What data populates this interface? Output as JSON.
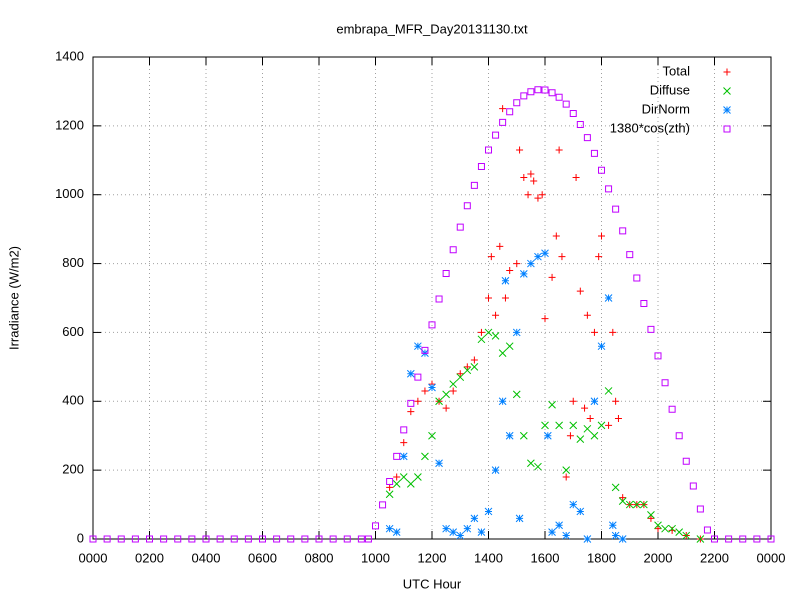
{
  "chart_data": {
    "type": "scatter",
    "title": "embrapa_MFR_Day20131130.txt",
    "x_label": "UTC Hour",
    "y_label": "Irradiance (W/m2)",
    "xlim": [
      0,
      24
    ],
    "xticks": [
      {
        "value": 0,
        "label": "0000"
      },
      {
        "value": 2,
        "label": "0200"
      },
      {
        "value": 4,
        "label": "0400"
      },
      {
        "value": 6,
        "label": "0600"
      },
      {
        "value": 8,
        "label": "0800"
      },
      {
        "value": 10,
        "label": "1000"
      },
      {
        "value": 12,
        "label": "1200"
      },
      {
        "value": 14,
        "label": "1400"
      },
      {
        "value": 16,
        "label": "1600"
      },
      {
        "value": 18,
        "label": "1800"
      },
      {
        "value": 20,
        "label": "2000"
      },
      {
        "value": 22,
        "label": "2200"
      },
      {
        "value": 24,
        "label": "0000"
      }
    ],
    "ylim": [
      0,
      1400
    ],
    "yticks": [
      0,
      200,
      400,
      600,
      800,
      1000,
      1200,
      1400
    ],
    "grid": true,
    "legend": "top right",
    "series": [
      {
        "name": "Total",
        "color": "#ff0000",
        "marker": "plus",
        "x": [
          10.5,
          10.75,
          11,
          11.25,
          11.5,
          11.75,
          12,
          12.25,
          12.5,
          12.75,
          13,
          13.25,
          13.5,
          13.75,
          14,
          14.1,
          14.25,
          14.4,
          14.5,
          14.6,
          14.75,
          15,
          15.1,
          15.25,
          15.4,
          15.5,
          15.6,
          15.75,
          15.9,
          16,
          16.25,
          16.4,
          16.5,
          16.6,
          16.75,
          16.9,
          17,
          17.1,
          17.25,
          17.4,
          17.5,
          17.6,
          17.75,
          17.9,
          18,
          18.25,
          18.4,
          18.5,
          18.6,
          18.75,
          19,
          19.25,
          19.5,
          19.75,
          20,
          20.5,
          21,
          21.5
        ],
        "values": [
          150,
          180,
          280,
          370,
          400,
          430,
          450,
          400,
          380,
          430,
          480,
          500,
          520,
          600,
          700,
          820,
          650,
          850,
          1250,
          700,
          780,
          800,
          1130,
          1050,
          1000,
          1060,
          1040,
          990,
          1000,
          640,
          760,
          880,
          1130,
          820,
          180,
          300,
          400,
          1050,
          720,
          380,
          650,
          350,
          600,
          820,
          880,
          330,
          600,
          400,
          350,
          120,
          100,
          100,
          100,
          60,
          30,
          25,
          10,
          0
        ]
      },
      {
        "name": "Diffuse",
        "color": "#00c000",
        "marker": "cross",
        "x": [
          10.5,
          10.75,
          11,
          11.25,
          11.5,
          11.75,
          12,
          12.25,
          12.5,
          12.75,
          13,
          13.25,
          13.5,
          13.75,
          14,
          14.25,
          14.5,
          14.75,
          15,
          15.25,
          15.5,
          15.75,
          16,
          16.25,
          16.5,
          16.75,
          17,
          17.25,
          17.5,
          17.75,
          18,
          18.25,
          18.5,
          18.75,
          19,
          19.25,
          19.5,
          19.75,
          20,
          20.25,
          20.5,
          20.75,
          21,
          21.5
        ],
        "values": [
          130,
          160,
          180,
          160,
          180,
          240,
          300,
          400,
          420,
          450,
          470,
          490,
          500,
          580,
          600,
          590,
          540,
          560,
          420,
          300,
          220,
          210,
          330,
          390,
          330,
          200,
          330,
          290,
          320,
          300,
          330,
          430,
          150,
          110,
          100,
          100,
          100,
          70,
          40,
          30,
          30,
          20,
          10,
          0
        ]
      },
      {
        "name": "DirNorm",
        "color": "#0080ff",
        "marker": "star",
        "x": [
          10.5,
          10.75,
          11,
          11.25,
          11.5,
          11.75,
          12,
          12.25,
          12.5,
          12.75,
          13,
          13.25,
          13.5,
          13.75,
          14,
          14.25,
          14.5,
          14.6,
          14.75,
          15,
          15.1,
          15.25,
          15.5,
          15.75,
          16,
          16.1,
          16.25,
          16.5,
          16.75,
          17,
          17.25,
          17.5,
          17.75,
          18,
          18.25,
          18.4,
          18.5,
          18.75
        ],
        "values": [
          30,
          20,
          240,
          480,
          560,
          540,
          440,
          220,
          30,
          20,
          10,
          30,
          60,
          20,
          80,
          200,
          400,
          750,
          300,
          600,
          60,
          770,
          800,
          820,
          830,
          300,
          20,
          40,
          10,
          100,
          80,
          0,
          400,
          560,
          700,
          40,
          10,
          0
        ]
      },
      {
        "name": "1380*cos(zth)",
        "color": "#c000ff",
        "marker": "square",
        "x": [
          0,
          0.5,
          1,
          1.5,
          2,
          2.5,
          3,
          3.5,
          4,
          4.5,
          5,
          5.5,
          6,
          6.5,
          7,
          7.5,
          8,
          8.5,
          9,
          9.5,
          9.75,
          10,
          10.25,
          10.5,
          10.75,
          11,
          11.25,
          11.5,
          11.75,
          12,
          12.25,
          12.5,
          12.75,
          13,
          13.25,
          13.5,
          13.75,
          14,
          14.25,
          14.5,
          14.75,
          15,
          15.25,
          15.5,
          15.75,
          16,
          16.25,
          16.5,
          16.75,
          17,
          17.25,
          17.5,
          17.75,
          18,
          18.25,
          18.5,
          18.75,
          19,
          19.25,
          19.5,
          19.75,
          20,
          20.25,
          20.5,
          20.75,
          21,
          21.25,
          21.5,
          21.75,
          22,
          22.5,
          23,
          23.5,
          24
        ],
        "values": [
          0,
          0,
          0,
          0,
          0,
          0,
          0,
          0,
          0,
          0,
          0,
          0,
          0,
          0,
          0,
          0,
          0,
          0,
          0,
          0,
          0,
          38,
          99,
          167,
          240,
          317,
          394,
          470,
          548,
          622,
          697,
          771,
          840,
          906,
          968,
          1027,
          1082,
          1130,
          1173,
          1210,
          1241,
          1267,
          1287,
          1299,
          1305,
          1304,
          1296,
          1283,
          1263,
          1236,
          1204,
          1166,
          1120,
          1071,
          1017,
          958,
          895,
          826,
          758,
          684,
          609,
          532,
          454,
          377,
          300,
          226,
          154,
          87,
          26,
          0,
          0,
          0,
          0,
          0
        ]
      }
    ]
  }
}
